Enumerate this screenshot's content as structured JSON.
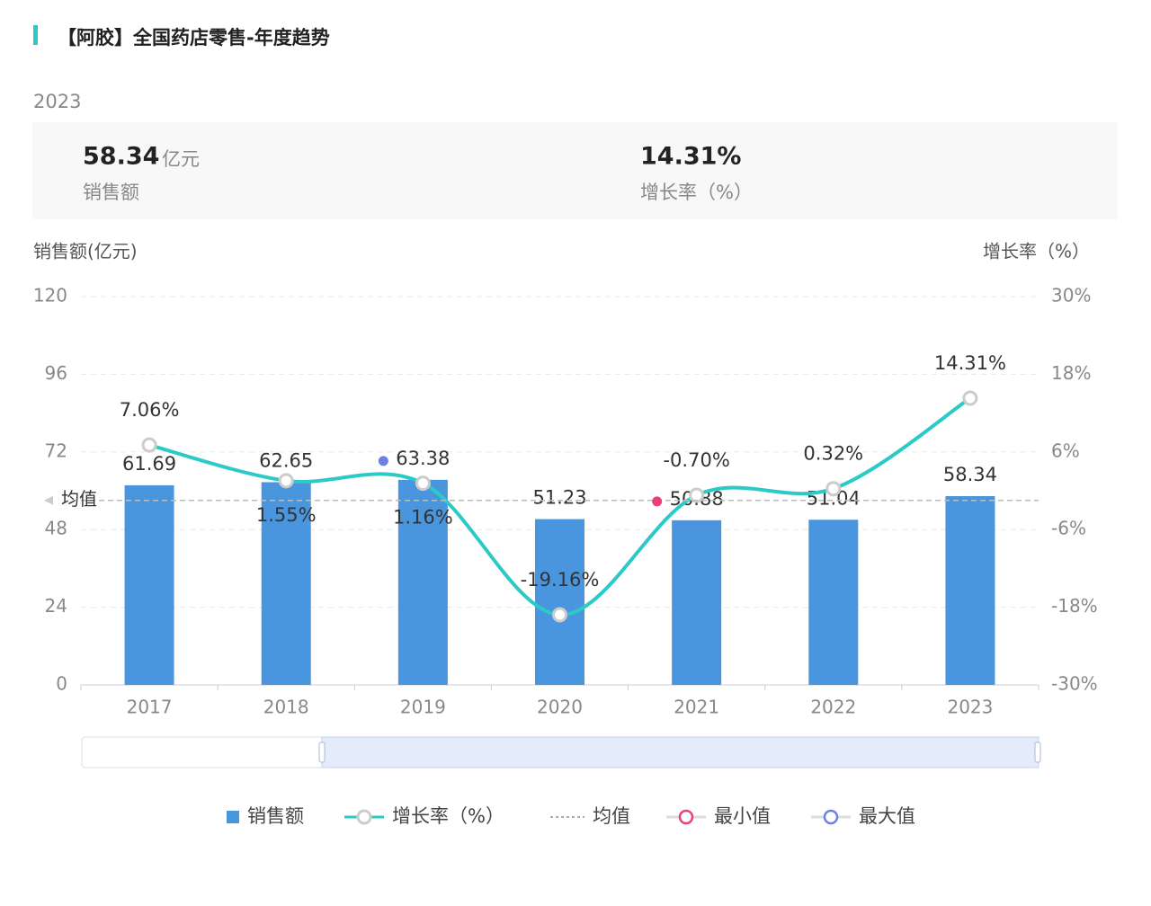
{
  "header": {
    "title": "【阿胶】全国药店零售-年度趋势",
    "year": "2023"
  },
  "summary": [
    {
      "value": "58.34",
      "unit": "亿元",
      "label": "销售额"
    },
    {
      "value": "14.31%",
      "label": "增长率（%）"
    }
  ],
  "chart_data": {
    "type": "bar",
    "y_label": "销售额(亿元)",
    "y2_label": "增长率（%）",
    "categories": [
      "2017",
      "2018",
      "2019",
      "2020",
      "2021",
      "2022",
      "2023"
    ],
    "series": [
      {
        "name": "销售额",
        "type": "bar",
        "color": "#4a96de",
        "values": [
          61.69,
          62.65,
          63.38,
          51.23,
          50.88,
          51.04,
          58.34
        ]
      },
      {
        "name": "增长率（%）",
        "type": "line",
        "axis": "y2",
        "color": "#2ccac6",
        "values": [
          7.06,
          1.55,
          1.16,
          -19.16,
          -0.7,
          0.32,
          14.31
        ],
        "value_labels": [
          "7.06%",
          "1.55%",
          "1.16%",
          "-19.16%",
          "-0.70%",
          "0.32%",
          "14.31%"
        ]
      }
    ],
    "average": {
      "name": "均值",
      "value": 57.03
    },
    "min_marker": {
      "name": "最小值",
      "color": "#e8417f"
    },
    "max_marker": {
      "name": "最大值",
      "color": "#6e7fe6"
    },
    "ylim": [
      0,
      120
    ],
    "yticks": [
      0,
      24,
      48,
      72,
      96,
      120
    ],
    "y2lim": [
      -30,
      30
    ],
    "y2ticks": [
      {
        "value": -30,
        "label": "-30%"
      },
      {
        "value": -18,
        "label": "-18%"
      },
      {
        "value": -6,
        "label": "-6%"
      },
      {
        "value": 6,
        "label": "6%"
      },
      {
        "value": 18,
        "label": "18%"
      },
      {
        "value": 30,
        "label": "30%"
      }
    ],
    "grid": true
  }
}
